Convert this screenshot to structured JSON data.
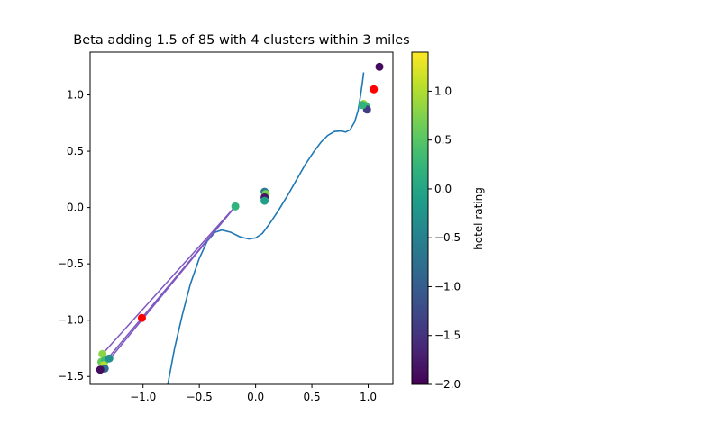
{
  "chart_data": {
    "type": "scatter",
    "title": "Beta adding 1.5 of 85 with 4 clusters within 3 miles",
    "xlabel": "",
    "ylabel": "",
    "xlim": [
      -1.47,
      1.22
    ],
    "ylim": [
      -1.57,
      1.38
    ],
    "xticks": [
      -1.0,
      -0.5,
      0.0,
      0.5,
      1.0
    ],
    "xtick_labels": [
      "−1.0",
      "−0.5",
      "0.0",
      "0.5",
      "1.0"
    ],
    "yticks": [
      -1.5,
      -1.0,
      -0.5,
      0.0,
      0.5,
      1.0
    ],
    "ytick_labels": [
      "−1.5",
      "−1.0",
      "−0.5",
      "0.0",
      "0.5",
      "1.0"
    ],
    "grid": false,
    "colorbar": {
      "label": "hotel rating",
      "range": [
        -2.0,
        1.4
      ],
      "ticks": [
        1.0,
        0.5,
        0.0,
        -0.5,
        -1.0,
        -1.5,
        -2.0
      ],
      "tick_labels": [
        "1.0",
        "0.5",
        "0.0",
        "−0.5",
        "−1.0",
        "−1.5",
        "−2.0"
      ],
      "colormap": "viridis"
    },
    "curve": {
      "color": "#1f77b4",
      "points": [
        [
          -0.78,
          -1.57
        ],
        [
          -0.72,
          -1.25
        ],
        [
          -0.65,
          -0.95
        ],
        [
          -0.58,
          -0.68
        ],
        [
          -0.5,
          -0.45
        ],
        [
          -0.43,
          -0.3
        ],
        [
          -0.36,
          -0.22
        ],
        [
          -0.3,
          -0.2
        ],
        [
          -0.22,
          -0.22
        ],
        [
          -0.14,
          -0.26
        ],
        [
          -0.06,
          -0.28
        ],
        [
          0.0,
          -0.27
        ],
        [
          0.06,
          -0.23
        ],
        [
          0.12,
          -0.15
        ],
        [
          0.2,
          -0.03
        ],
        [
          0.28,
          0.1
        ],
        [
          0.36,
          0.24
        ],
        [
          0.44,
          0.38
        ],
        [
          0.52,
          0.5
        ],
        [
          0.58,
          0.58
        ],
        [
          0.64,
          0.64
        ],
        [
          0.7,
          0.675
        ],
        [
          0.76,
          0.68
        ],
        [
          0.8,
          0.67
        ],
        [
          0.84,
          0.69
        ],
        [
          0.88,
          0.76
        ],
        [
          0.91,
          0.86
        ],
        [
          0.93,
          0.98
        ],
        [
          0.95,
          1.12
        ],
        [
          0.96,
          1.2
        ]
      ]
    },
    "lines": {
      "color": "#7e57c2",
      "segments": [
        [
          [
            -0.18,
            0.01
          ],
          [
            -1.38,
            -1.42
          ]
        ],
        [
          [
            -0.18,
            0.01
          ],
          [
            -1.3,
            -1.35
          ]
        ],
        [
          [
            -0.18,
            0.01
          ],
          [
            -1.36,
            -1.3
          ]
        ]
      ]
    },
    "highlight_points": {
      "color": "#ff0000",
      "points": [
        [
          1.05,
          1.05
        ],
        [
          -1.01,
          -0.98
        ]
      ]
    },
    "points": [
      {
        "x": 1.1,
        "y": 1.25,
        "c": -1.9
      },
      {
        "x": 0.96,
        "y": 0.92,
        "c": 0.9
      },
      {
        "x": 0.98,
        "y": 0.9,
        "c": 0.3
      },
      {
        "x": 0.99,
        "y": 0.87,
        "c": -1.4
      },
      {
        "x": 0.95,
        "y": 0.91,
        "c": 0.2
      },
      {
        "x": 0.08,
        "y": 0.14,
        "c": -0.6
      },
      {
        "x": 0.09,
        "y": 0.12,
        "c": 0.7
      },
      {
        "x": 0.08,
        "y": 0.09,
        "c": -1.8
      },
      {
        "x": 0.08,
        "y": 0.06,
        "c": -0.1
      },
      {
        "x": -0.18,
        "y": 0.01,
        "c": 0.2
      },
      {
        "x": -1.36,
        "y": -1.3,
        "c": 0.8
      },
      {
        "x": -1.37,
        "y": -1.37,
        "c": 0.6
      },
      {
        "x": -1.34,
        "y": -1.36,
        "c": 0.3
      },
      {
        "x": -1.3,
        "y": -1.34,
        "c": -0.3
      },
      {
        "x": -1.35,
        "y": -1.4,
        "c": 1.0
      },
      {
        "x": -1.34,
        "y": -1.43,
        "c": -0.8
      },
      {
        "x": -1.38,
        "y": -1.44,
        "c": -1.9
      }
    ]
  }
}
